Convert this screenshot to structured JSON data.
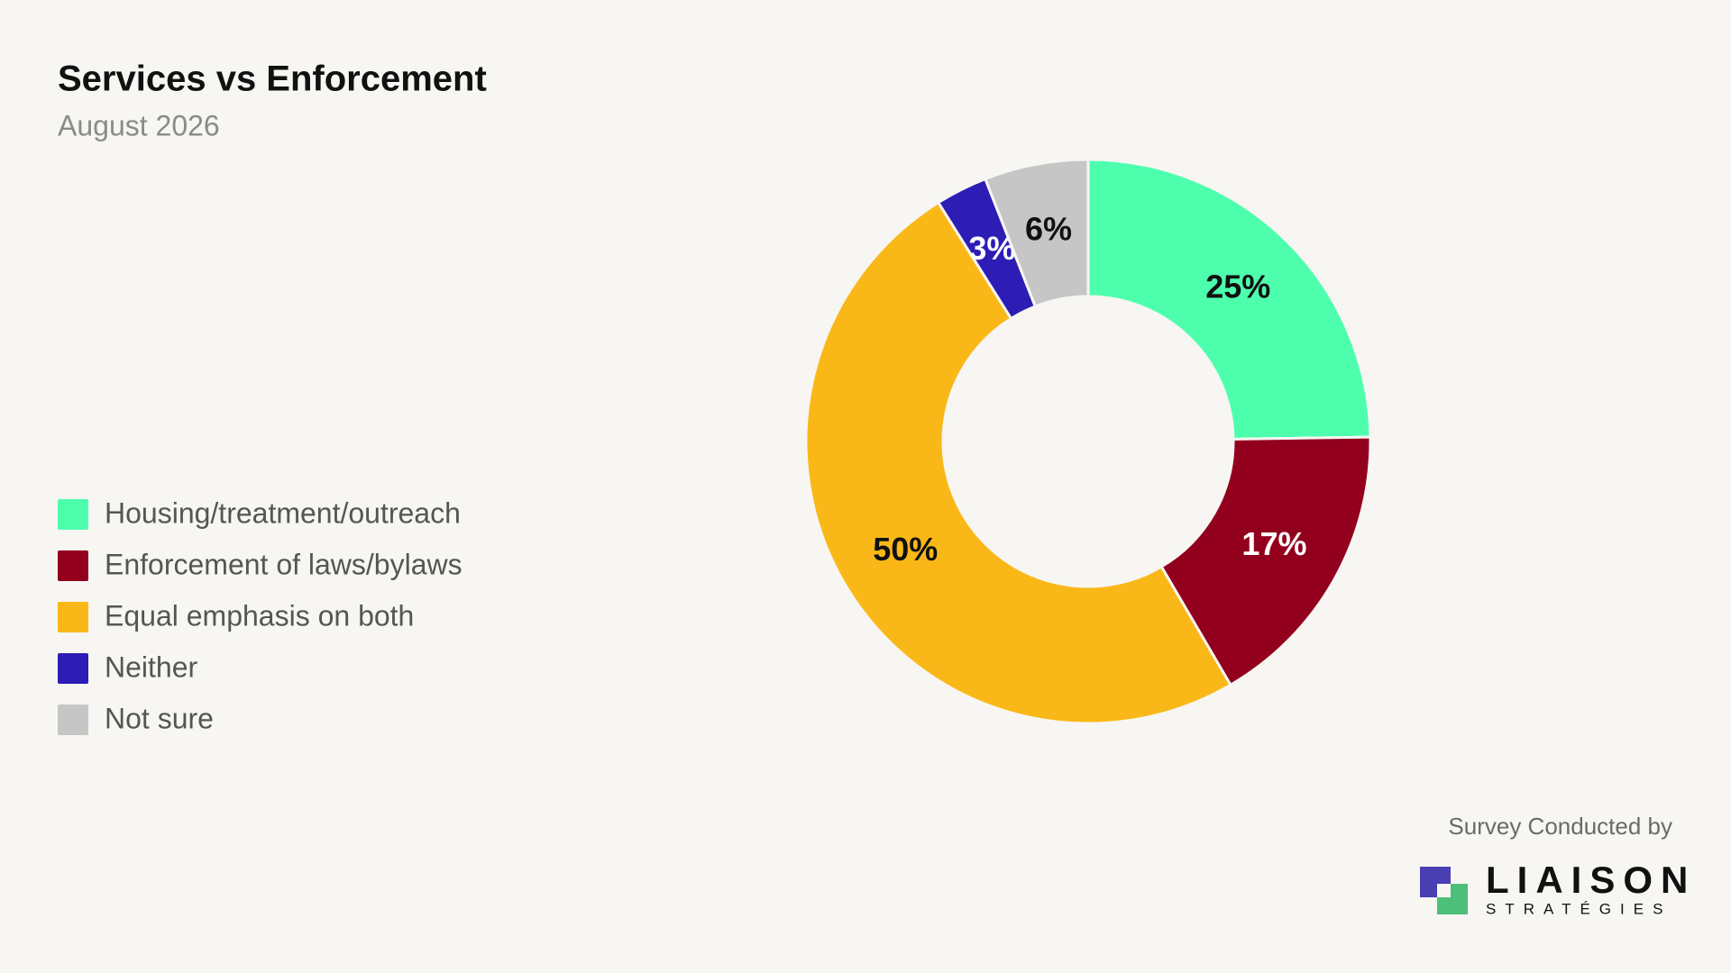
{
  "chart_data": {
    "type": "pie",
    "title": "Services vs Enforcement",
    "subtitle": "August 2026",
    "categories": [
      "Housing/treatment/outreach",
      "Enforcement of laws/bylaws",
      "Equal emphasis on both",
      "Neither",
      "Not sure"
    ],
    "values": [
      25,
      17,
      50,
      3,
      6
    ],
    "value_labels": [
      "25%",
      "17%",
      "50%",
      "3%",
      "6%"
    ],
    "colors": [
      "#4dffad",
      "#93001d",
      "#fab818",
      "#2d1db5",
      "#c6c6c6"
    ],
    "label_colors": [
      "#111111",
      "#ffffff",
      "#111111",
      "#ffffff",
      "#111111"
    ],
    "hole": true,
    "legend": "left"
  },
  "footer": {
    "credit": "Survey Conducted by",
    "logo_name": "LIAISON",
    "logo_sub": "STRATÉGIES"
  }
}
